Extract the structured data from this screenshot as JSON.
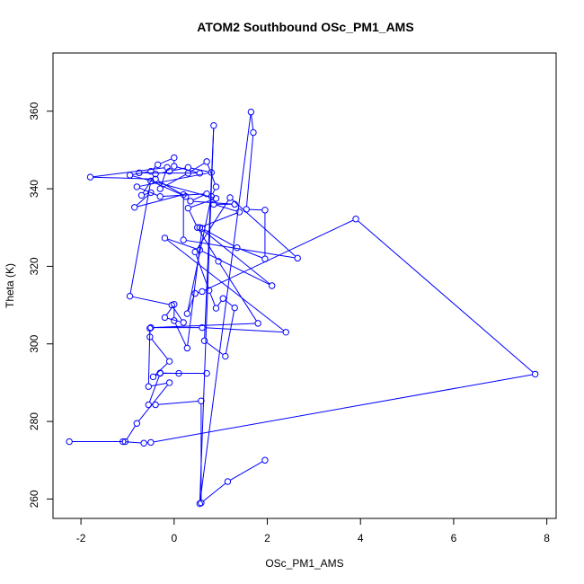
{
  "chart_data": {
    "type": "line",
    "title": "ATOM2 Southbound OSc_PM1_AMS",
    "xlabel": "OSc_PM1_AMS",
    "ylabel": "Theta (K)",
    "xlim": [
      -2.6,
      8.2
    ],
    "ylim": [
      255,
      375
    ],
    "x_ticks": [
      -2,
      0,
      2,
      4,
      6,
      8
    ],
    "y_ticks": [
      260,
      280,
      300,
      320,
      340,
      360
    ],
    "grid": false,
    "legend": "none",
    "series_color": "#0000ff",
    "markers": "open-circle",
    "points": [
      [
        1.95,
        270.0
      ],
      [
        1.15,
        264.5
      ],
      [
        0.58,
        259.0
      ],
      [
        0.58,
        285.3
      ],
      [
        -0.4,
        284.3
      ],
      [
        -0.55,
        284.3
      ],
      [
        -0.3,
        292.4
      ],
      [
        0.7,
        292.4
      ],
      [
        0.1,
        292.4
      ],
      [
        -0.3,
        292.5
      ],
      [
        -0.45,
        291.5
      ],
      [
        -0.1,
        295.5
      ],
      [
        -0.52,
        301.8
      ],
      [
        -0.52,
        304.0
      ],
      [
        -0.55,
        289.0
      ],
      [
        -0.1,
        290.0
      ],
      [
        -0.8,
        279.5
      ],
      [
        -1.05,
        274.8
      ],
      [
        -2.25,
        274.8
      ],
      [
        -1.1,
        274.8
      ],
      [
        -0.65,
        274.4
      ],
      [
        -0.5,
        274.6
      ],
      [
        7.75,
        292.2
      ],
      [
        3.9,
        332.2
      ],
      [
        0.6,
        313.5
      ],
      [
        0.45,
        313.0
      ],
      [
        0.28,
        307.8
      ],
      [
        0.8,
        338.0
      ],
      [
        0.9,
        340.5
      ],
      [
        0.7,
        347.0
      ],
      [
        0.3,
        344.0
      ],
      [
        -0.3,
        340.0
      ],
      [
        -0.15,
        345.5
      ],
      [
        -1.8,
        343.0
      ],
      [
        -0.4,
        342.5
      ],
      [
        0.25,
        338.0
      ],
      [
        -0.5,
        342.0
      ],
      [
        -0.95,
        312.3
      ],
      [
        -0.05,
        310.0
      ],
      [
        0.2,
        305.5
      ],
      [
        -0.2,
        306.8
      ],
      [
        0.0,
        310.2
      ],
      [
        0.0,
        306.0
      ],
      [
        0.28,
        298.9
      ],
      [
        0.6,
        329.8
      ],
      [
        1.35,
        324.8
      ],
      [
        1.95,
        321.9
      ],
      [
        1.95,
        334.5
      ],
      [
        1.55,
        334.7
      ],
      [
        1.7,
        354.5
      ],
      [
        1.65,
        359.8
      ],
      [
        0.55,
        258.8
      ],
      [
        0.85,
        356.3
      ],
      [
        0.65,
        300.8
      ],
      [
        1.1,
        296.8
      ],
      [
        1.3,
        309.3
      ],
      [
        1.05,
        311.7
      ],
      [
        0.9,
        309.2
      ],
      [
        0.75,
        313.8
      ],
      [
        0.45,
        323.7
      ],
      [
        1.2,
        337.7
      ],
      [
        2.65,
        322.1
      ],
      [
        0.2,
        326.8
      ],
      [
        0.2,
        338.5
      ],
      [
        -0.85,
        335.2
      ],
      [
        -0.5,
        339.0
      ],
      [
        -0.7,
        338.3
      ],
      [
        -0.4,
        343.8
      ],
      [
        -0.1,
        344.5
      ],
      [
        0.3,
        345.5
      ],
      [
        0.8,
        344.2
      ],
      [
        -0.8,
        340.5
      ],
      [
        -0.3,
        338.0
      ],
      [
        0.7,
        338.7
      ],
      [
        0.35,
        336.8
      ],
      [
        1.3,
        336.0
      ],
      [
        0.85,
        336.0
      ],
      [
        1.4,
        334.0
      ],
      [
        0.55,
        330.0
      ],
      [
        2.1,
        315.0
      ],
      [
        0.55,
        324.2
      ],
      [
        -0.2,
        327.3
      ],
      [
        2.4,
        303.0
      ],
      [
        0.6,
        304.2
      ],
      [
        -0.5,
        304.2
      ],
      [
        1.8,
        305.3
      ],
      [
        0.95,
        321.3
      ],
      [
        0.5,
        330.0
      ],
      [
        0.3,
        335.0
      ],
      [
        0.9,
        337.5
      ],
      [
        -0.95,
        343.5
      ],
      [
        -0.5,
        344.5
      ],
      [
        -0.35,
        346.2
      ],
      [
        0.0,
        348.0
      ],
      [
        0.0,
        345.8
      ],
      [
        0.55,
        344.0
      ],
      [
        -0.75,
        344.1
      ]
    ]
  }
}
